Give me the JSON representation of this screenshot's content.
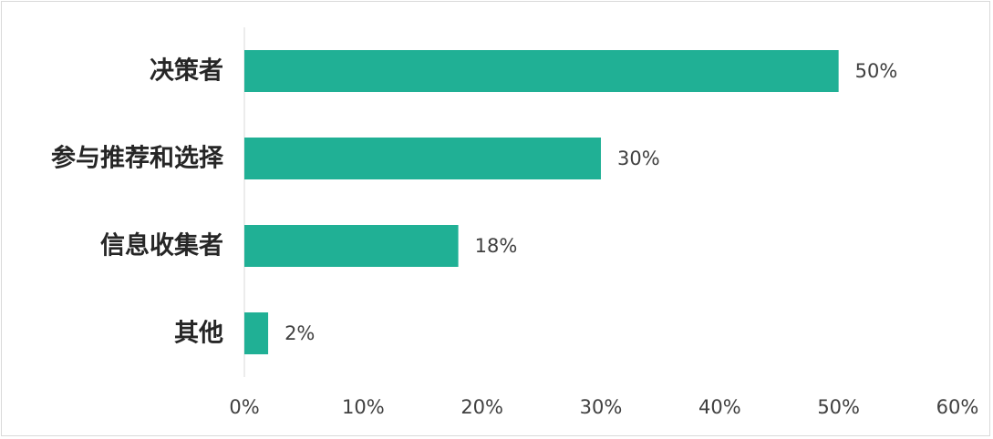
{
  "chart_data": {
    "type": "bar",
    "orientation": "horizontal",
    "categories": [
      "决策者",
      "参与推荐和选择",
      "信息收集者",
      "其他"
    ],
    "values": [
      50,
      30,
      18,
      2
    ],
    "value_labels": [
      "50%",
      "30%",
      "18%",
      "2%"
    ],
    "xlim": [
      0,
      60
    ],
    "xticks": [
      0,
      10,
      20,
      30,
      40,
      50,
      60
    ],
    "xtick_labels": [
      "0%",
      "10%",
      "20%",
      "30%",
      "40%",
      "50%",
      "60%"
    ],
    "bar_color": "#20B095",
    "grid": false,
    "legend": "none"
  }
}
